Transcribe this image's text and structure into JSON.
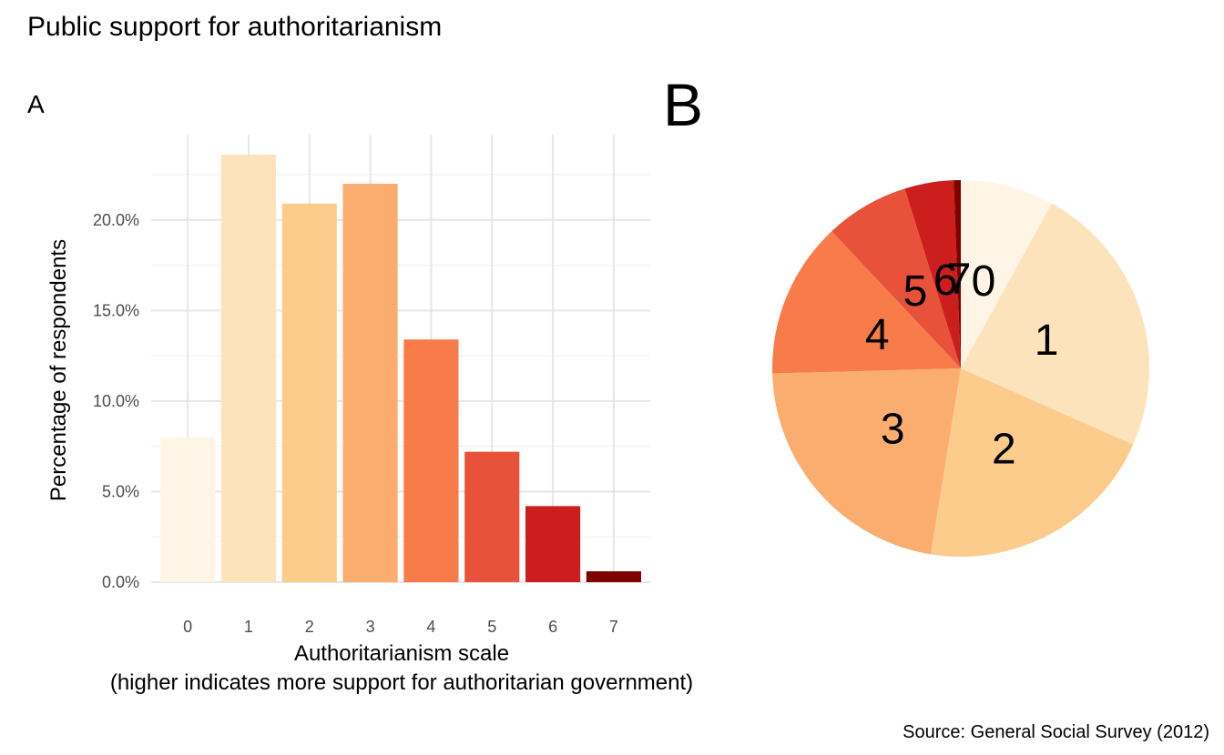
{
  "title": "Public support for authoritarianism",
  "caption": "Source: General Social Survey (2012)",
  "chart_data": [
    {
      "type": "bar",
      "panel_tag": "A",
      "categories": [
        "0",
        "1",
        "2",
        "3",
        "4",
        "5",
        "6",
        "7"
      ],
      "values": [
        8.0,
        23.6,
        20.9,
        22.0,
        13.4,
        7.2,
        4.2,
        0.6
      ],
      "value_unit": "%",
      "xlabel": "Authoritarianism scale",
      "xlabel_line2": "(higher indicates more support for authoritarian government)",
      "ylabel": "Percentage of respondents",
      "ylim": [
        0,
        25
      ],
      "yticks": [
        "0.0%",
        "5.0%",
        "10.0%",
        "15.0%",
        "20.0%"
      ],
      "grid": true,
      "colors": [
        "#FFF5E6",
        "#FDE3BC",
        "#FCCC8D",
        "#FBAD6F",
        "#F77C4A",
        "#E8523A",
        "#CB1E1D",
        "#7F0000"
      ]
    },
    {
      "type": "pie",
      "panel_tag": "B",
      "labels": [
        "0",
        "1",
        "2",
        "3",
        "4",
        "5",
        "6",
        "7"
      ],
      "values": [
        8.0,
        23.6,
        20.9,
        22.0,
        13.4,
        7.2,
        4.2,
        0.6
      ],
      "colors": [
        "#FFF5E6",
        "#FDE3BC",
        "#FCCC8D",
        "#FBAD6F",
        "#F77C4A",
        "#E8523A",
        "#CB1E1D",
        "#7F0000"
      ]
    }
  ]
}
